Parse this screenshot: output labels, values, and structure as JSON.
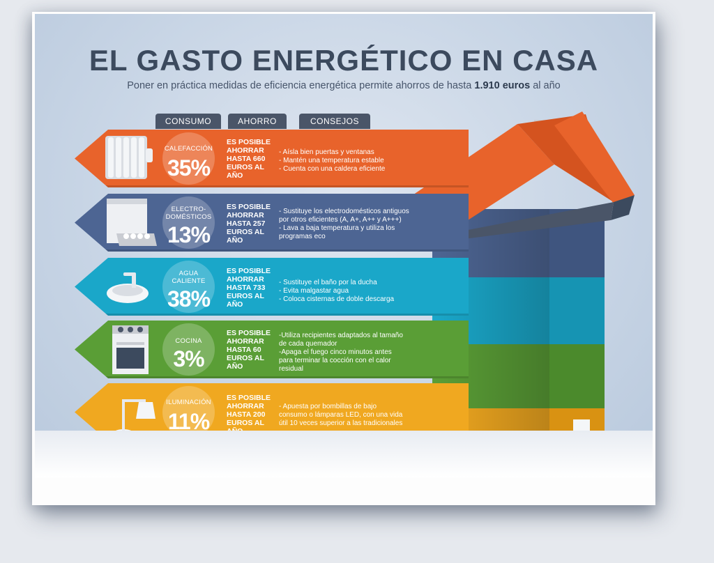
{
  "title": "EL GASTO ENERGÉTICO EN CASA",
  "subtitle_prefix": "Poner en práctica medidas de eficiencia energética permite ahorros de hasta ",
  "subtitle_highlight": "1.910 euros",
  "subtitle_suffix": " al año",
  "tabs": {
    "consumo": "CONSUMO",
    "ahorro": "AHORRO",
    "consejos": "CONSEJOS"
  },
  "colors": {
    "calefaccion": "#e8632b",
    "electrodomesticos": "#4d6593",
    "agua": "#1aa7c9",
    "cocina": "#5a9e36",
    "iluminacion": "#f0a820",
    "roof": "#e8632b",
    "chimney": "#c9ccd2"
  },
  "rows": [
    {
      "id": "calefaccion",
      "icon": "radiator-icon",
      "category_lines": [
        "CALEFACCIÓN"
      ],
      "percent": "35%",
      "share": 0.35,
      "savings": [
        "ES POSIBLE",
        "AHORRAR",
        "HASTA 660",
        "EUROS AL",
        "AÑO"
      ],
      "tips": [
        "- Aísla bien puertas y ventanas",
        "- Mantén una temperatura estable",
        "- Cuenta con una caldera eficiente"
      ]
    },
    {
      "id": "electrodomesticos",
      "icon": "dishwasher-icon",
      "category_lines": [
        "ELECTRO-",
        "DOMÉSTICOS"
      ],
      "percent": "13%",
      "share": 0.13,
      "savings": [
        "ES POSIBLE",
        "AHORRAR",
        "HASTA 257",
        "EUROS AL",
        "AÑO"
      ],
      "tips": [
        "- Sustituye los electrodomésticos antiguos",
        "  por otros eficientes (A, A+, A++ y A+++)",
        "- Lava a baja temperatura y utiliza los",
        "  programas eco"
      ]
    },
    {
      "id": "agua",
      "icon": "sink-icon",
      "category_lines": [
        "AGUA",
        "CALIENTE"
      ],
      "percent": "38%",
      "share": 0.38,
      "savings": [
        "ES POSIBLE",
        "AHORRAR",
        "HASTA 733",
        "EUROS AL",
        "AÑO"
      ],
      "tips": [
        "- Sustituye el baño por la ducha",
        "- Evita malgastar agua",
        "- Coloca cisternas de doble descarga"
      ]
    },
    {
      "id": "cocina",
      "icon": "stove-icon",
      "category_lines": [
        "COCINA"
      ],
      "percent": "3%",
      "share": 0.03,
      "savings": [
        "ES POSIBLE",
        "AHORRAR",
        "HASTA 60",
        "EUROS AL",
        "AÑO"
      ],
      "tips": [
        "-Utiliza recipientes adaptados al tamaño",
        "de cada quemador",
        "-Apaga el fuego cinco minutos antes",
        "para terminar la cocción con el calor",
        "residual"
      ]
    },
    {
      "id": "iluminacion",
      "icon": "desk-lamp-icon",
      "category_lines": [
        "ILUMINACIÓN"
      ],
      "percent": "11%",
      "share": 0.11,
      "savings": [
        "ES POSIBLE",
        "AHORRAR",
        "HASTA 200",
        "EUROS AL",
        "AÑO"
      ],
      "tips": [
        "- Apuesta por bombillas de bajo",
        "  consumo o lámparas LED, con una vida",
        "  útil 10 veces superior a las tradicionales"
      ]
    }
  ]
}
